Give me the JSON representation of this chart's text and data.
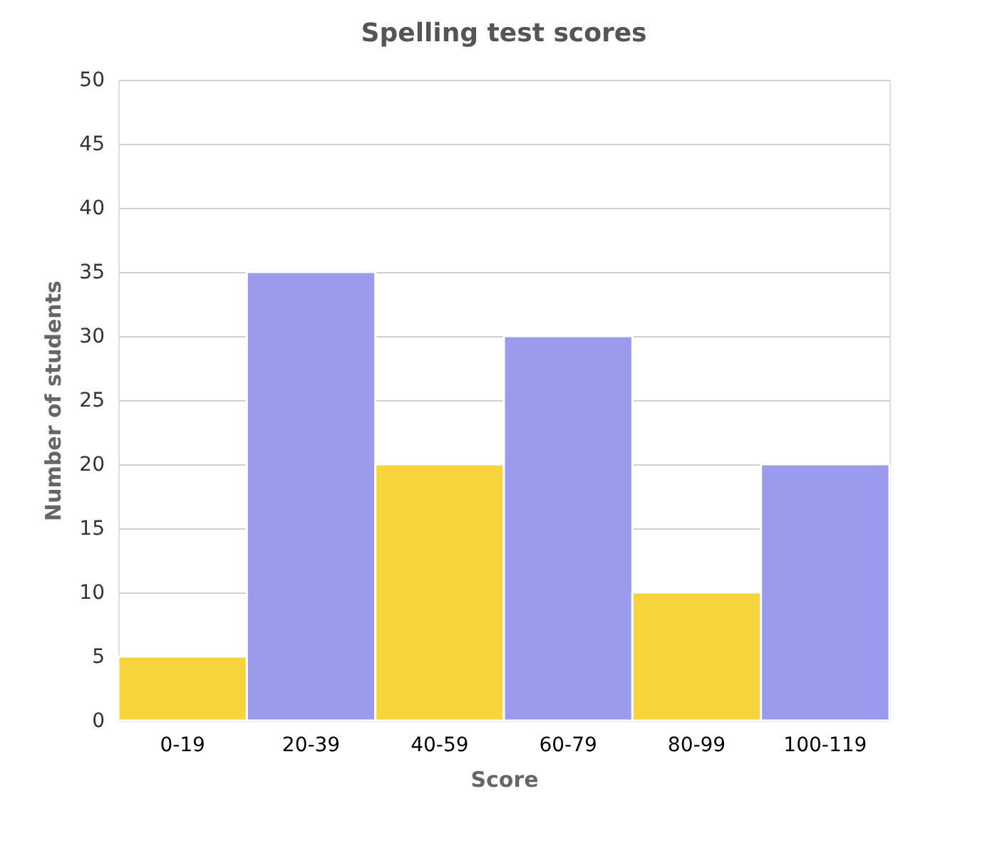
{
  "chart_data": {
    "type": "bar",
    "title": "Spelling test scores",
    "xlabel": "Score",
    "ylabel": "Number of students",
    "categories": [
      "0-19",
      "20-39",
      "40-59",
      "60-79",
      "80-99",
      "100-119"
    ],
    "values": [
      5,
      35,
      20,
      30,
      10,
      20
    ],
    "colors": [
      "#f7d43c",
      "#9b9bee",
      "#f7d43c",
      "#9b9bee",
      "#f7d43c",
      "#9b9bee"
    ],
    "ylim": [
      0,
      50
    ],
    "yticks": [
      0,
      5,
      10,
      15,
      20,
      25,
      30,
      35,
      40,
      45,
      50
    ],
    "grid": "y",
    "legend": false
  }
}
